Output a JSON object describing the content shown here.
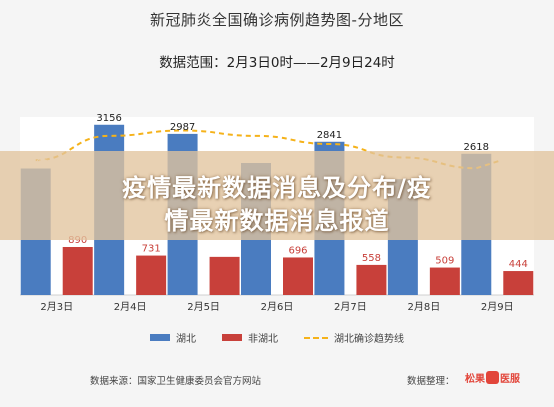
{
  "header": {
    "title": "新冠肺炎全国确诊病例趋势图-分地区",
    "subtitle": "数据范围：2月3日0时——2月9日24时"
  },
  "overlay": {
    "line1": "疫情最新数据消息及分布/疫",
    "line2": "情最新数据消息报道"
  },
  "footer": {
    "source": "数据来源：国家卫生健康委员会官方网站",
    "compiled": "数据整理：",
    "logo_text": "松果",
    "logo_text2": "医服"
  },
  "colors": {
    "hubei": "#4a7cc0",
    "non_hubei": "#c8403a",
    "trend": "#f5b21a"
  },
  "chart_data": {
    "type": "bar",
    "categories": [
      "2月3日",
      "2月4日",
      "2月5日",
      "2月6日",
      "2月7日",
      "2月8日",
      "2月9日"
    ],
    "series": [
      {
        "name": "湖北",
        "values": [
          2345,
          3156,
          2987,
          2447,
          2841,
          2147,
          2618
        ],
        "labels": [
          "2345",
          "3156",
          "2987",
          "",
          "2841",
          "",
          "2618"
        ]
      },
      {
        "name": "非湖北",
        "values": [
          890,
          731,
          707,
          696,
          558,
          509,
          444
        ],
        "labels": [
          "890",
          "731",
          "",
          "696",
          "558",
          "509",
          "444"
        ]
      },
      {
        "name": "湖北确诊趋势线",
        "type": "line",
        "values": [
          2500,
          2950,
          3050,
          2950,
          2800,
          2550,
          2350
        ]
      }
    ],
    "ylim": [
      0,
      3300
    ]
  }
}
